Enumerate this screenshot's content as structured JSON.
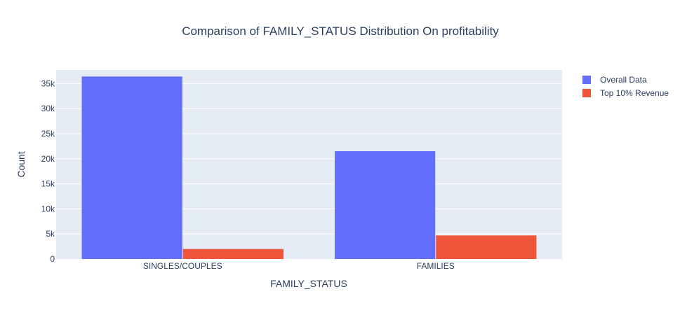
{
  "chart_data": {
    "type": "bar",
    "title": "Comparison of FAMILY_STATUS Distribution On profitability",
    "xlabel": "FAMILY_STATUS",
    "ylabel": "Count",
    "categories": [
      "SINGLES/COUPLES",
      "FAMILIES"
    ],
    "series": [
      {
        "name": "Overall Data",
        "color": "#636efa",
        "values": [
          36400,
          21500
        ]
      },
      {
        "name": "Top 10% Revenue",
        "color": "#ef553b",
        "values": [
          2000,
          4700
        ]
      }
    ],
    "ylim": [
      0,
      37700
    ],
    "yticks": [
      {
        "value": 0,
        "label": "0"
      },
      {
        "value": 5000,
        "label": "5k"
      },
      {
        "value": 10000,
        "label": "10k"
      },
      {
        "value": 15000,
        "label": "15k"
      },
      {
        "value": 20000,
        "label": "20k"
      },
      {
        "value": 25000,
        "label": "25k"
      },
      {
        "value": 30000,
        "label": "30k"
      },
      {
        "value": 35000,
        "label": "35k"
      }
    ],
    "grid": true,
    "legend_position": "top-right"
  }
}
